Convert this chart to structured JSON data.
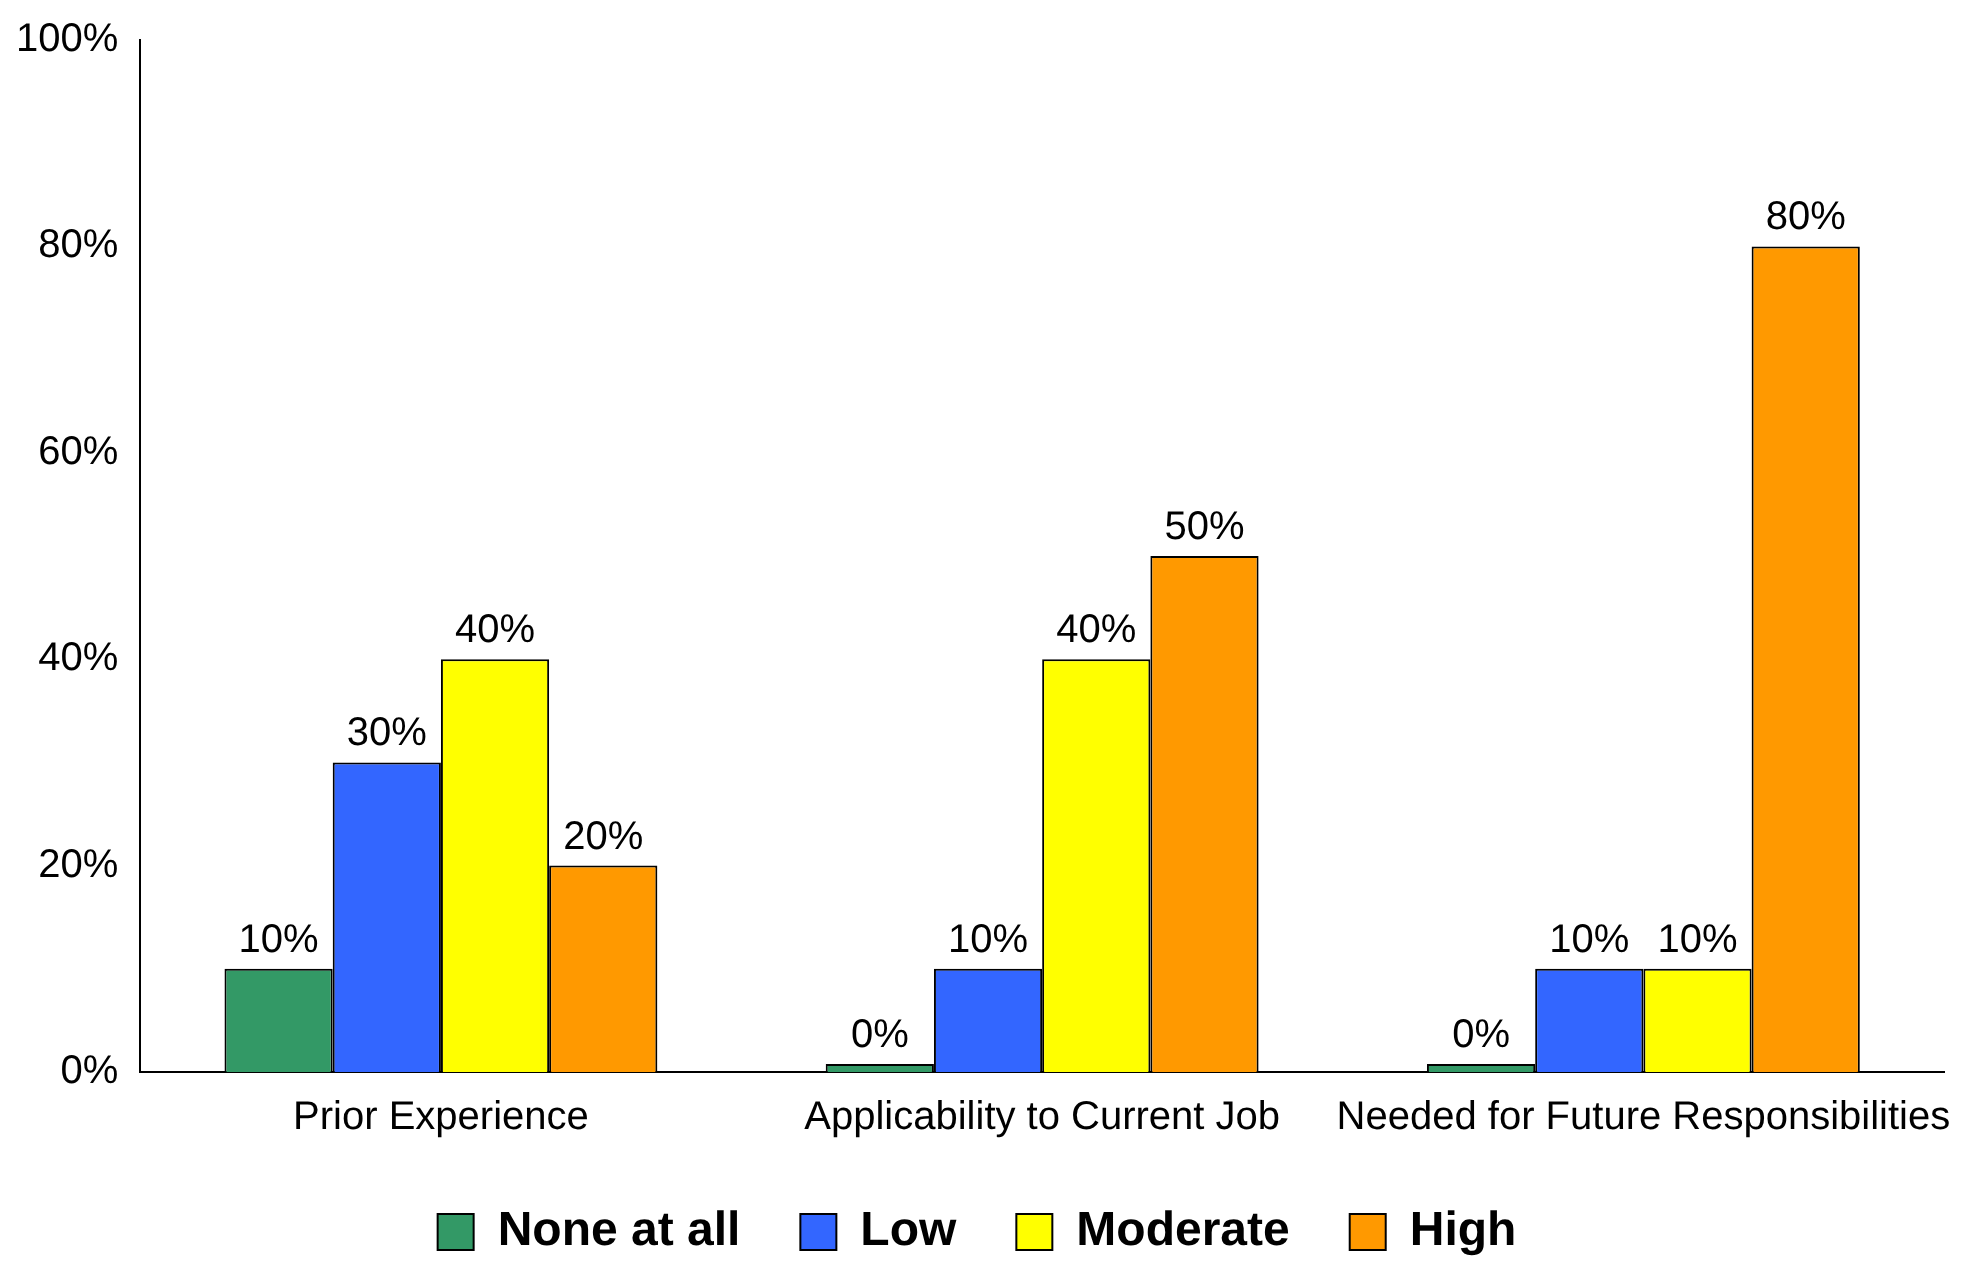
{
  "chart_data": {
    "type": "bar",
    "categories": [
      "Prior Experience",
      "Applicability to Current Job",
      "Needed for Future Responsibilities"
    ],
    "series": [
      {
        "name": "None at all",
        "color": "#339966",
        "values": [
          10,
          0,
          0
        ],
        "value_labels": [
          "10%",
          "0%",
          "0%"
        ]
      },
      {
        "name": "Low",
        "color": "#3366ff",
        "values": [
          30,
          10,
          10
        ],
        "value_labels": [
          "30%",
          "10%",
          "10%"
        ]
      },
      {
        "name": "Moderate",
        "color": "#ffff00",
        "values": [
          40,
          40,
          10
        ],
        "value_labels": [
          "40%",
          "40%",
          "10%"
        ]
      },
      {
        "name": "High",
        "color": "#ff9900",
        "values": [
          20,
          50,
          80
        ],
        "value_labels": [
          "20%",
          "50%",
          "80%"
        ]
      }
    ],
    "ylim": [
      0,
      100
    ],
    "yticks": [
      {
        "value": 0,
        "label": "0%"
      },
      {
        "value": 20,
        "label": "20%"
      },
      {
        "value": 40,
        "label": "40%"
      },
      {
        "value": 60,
        "label": "60%"
      },
      {
        "value": 80,
        "label": "80%"
      },
      {
        "value": 100,
        "label": "100%"
      }
    ],
    "grid": false,
    "legend": "bottom"
  }
}
